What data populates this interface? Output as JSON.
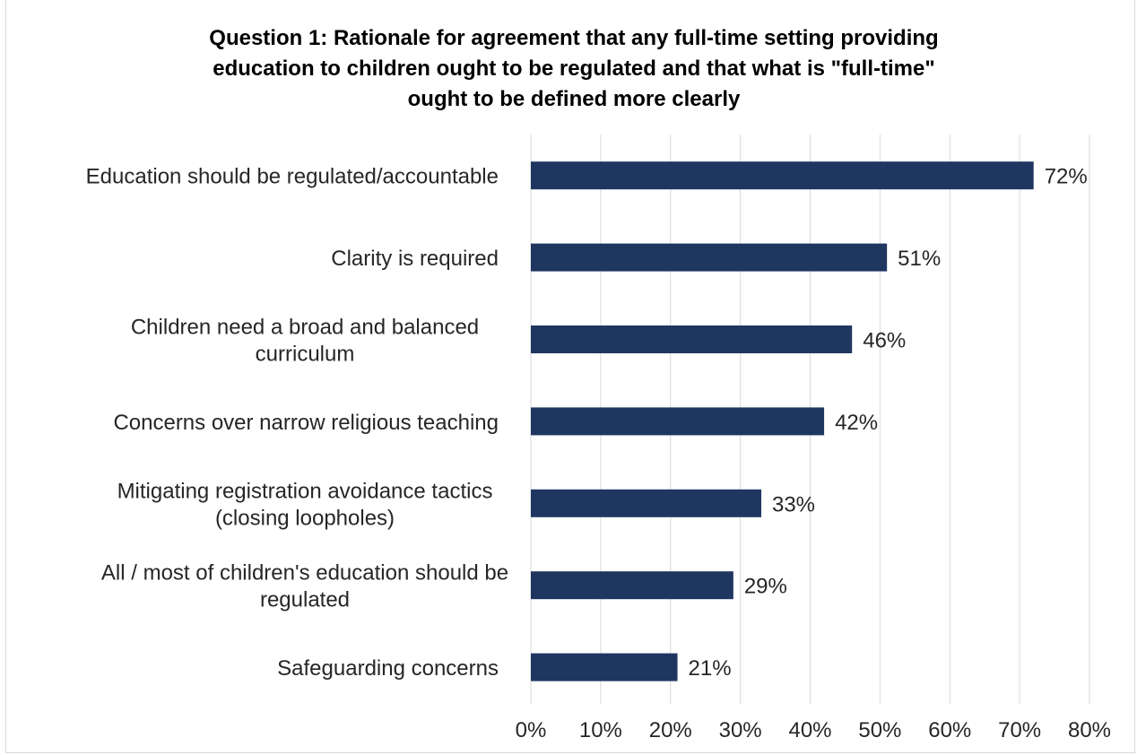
{
  "chart_data": {
    "type": "bar",
    "orientation": "horizontal",
    "title": "Question 1: Rationale for agreement that any full-time setting providing\neducation to children ought to be regulated and that what is \"full-time\"\nought to be defined more clearly",
    "categories": [
      [
        "Education should be regulated/accountable"
      ],
      [
        "Clarity is required"
      ],
      [
        "Children need a broad and balanced",
        "curriculum"
      ],
      [
        "Concerns over narrow religious teaching"
      ],
      [
        "Mitigating registration avoidance tactics",
        "(closing loopholes)"
      ],
      [
        "All / most of children's education should be",
        "regulated"
      ],
      [
        "Safeguarding concerns"
      ]
    ],
    "values": [
      72,
      51,
      46,
      42,
      33,
      29,
      21
    ],
    "data_labels": [
      "72%",
      "51%",
      "46%",
      "42%",
      "33%",
      "29%",
      "21%"
    ],
    "x_ticks": [
      0,
      10,
      20,
      30,
      40,
      50,
      60,
      70,
      80
    ],
    "x_tick_labels": [
      "0%",
      "10%",
      "20%",
      "30%",
      "40%",
      "50%",
      "60%",
      "70%",
      "80%"
    ],
    "xlim": [
      0,
      80
    ],
    "grid": true,
    "bar_color": "#1f3660",
    "grid_color": "#d9d9d9"
  }
}
